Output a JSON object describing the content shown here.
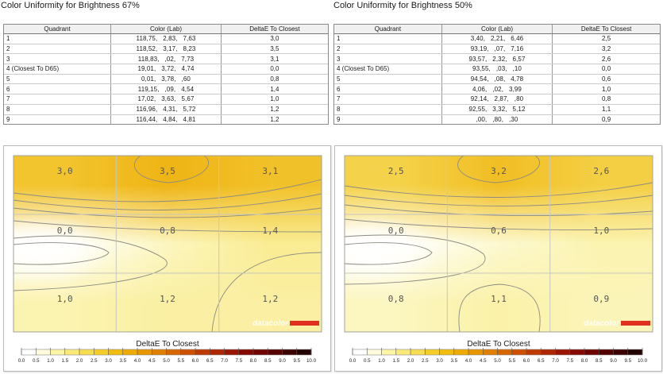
{
  "panels": [
    {
      "title": "Color Uniformity for Brightness 67%",
      "headers": [
        "Quadrant",
        "Color (Lab)",
        "DeltaE To Closest"
      ],
      "rows": [
        [
          "1",
          "118,75,   2,83,   7,63",
          "3,0"
        ],
        [
          "2",
          "118,52,   3,17,   8,23",
          "3,5"
        ],
        [
          "3",
          "118,83,   ,02,   7,73",
          "3,1"
        ],
        [
          "4 (Closest To D65)",
          "19,01,   3,72,   4,74",
          "0,0"
        ],
        [
          "5",
          "0,01,   3,78,   ,60",
          "0,8"
        ],
        [
          "6",
          "119,15,   ,09,   4,54",
          "1,4"
        ],
        [
          "7",
          "17,02,   3,63,   5,67",
          "1,0"
        ],
        [
          "8",
          "116,96,   4,31,   5,72",
          "1,2"
        ],
        [
          "9",
          "116,44,   4,84,   4,81",
          "1,2"
        ]
      ],
      "grid_labels": [
        "3,0",
        "3,5",
        "3,1",
        "0,0",
        "0,8",
        "1,4",
        "1,0",
        "1,2",
        "1,2"
      ],
      "legend_title": "DeltaE To Closest",
      "watermark": "datacolor"
    },
    {
      "title": "Color Uniformity for Brightness 50%",
      "headers": [
        "Quadrant",
        "Color (Lab)",
        "DeltaE To Closest"
      ],
      "rows": [
        [
          "1",
          "3,40,   2,21,   6,46",
          "2,5"
        ],
        [
          "2",
          "93,19,   ,07,   7,16",
          "3,2"
        ],
        [
          "3",
          "93,57,   2,32,   6,57",
          "2,6"
        ],
        [
          "4 (Closest To D65)",
          "93,55,   ,03,   ,10",
          "0,0"
        ],
        [
          "5",
          "94,54,   ,08,   4,78",
          "0,6"
        ],
        [
          "6",
          "4,06,   ,02,   3,99",
          "1,0"
        ],
        [
          "7",
          "92,14,   2,87,   ,80",
          "0,8"
        ],
        [
          "8",
          "92,55,   3,32,   5,12",
          "1,1"
        ],
        [
          "9",
          ",00,   ,80,   ,30",
          "0,9"
        ]
      ],
      "grid_labels": [
        "2,5",
        "3,2",
        "2,6",
        "0,0",
        "0,6",
        "1,0",
        "0,8",
        "1,1",
        "0,9"
      ],
      "legend_title": "DeltaE To Closest",
      "watermark": "datacolor"
    }
  ],
  "scale_ticks": [
    "0.0",
    "0.5",
    "1.0",
    "1.5",
    "2.0",
    "2.5",
    "3.0",
    "3.5",
    "4.0",
    "4.5",
    "5.0",
    "5.5",
    "6.0",
    "6.5",
    "7.0",
    "7.5",
    "8.0",
    "8.5",
    "9.0",
    "9.5",
    "10.0"
  ],
  "scale_colors": [
    "#ffffff",
    "#fffbdc",
    "#fdf5a6",
    "#fbea7a",
    "#f8dd50",
    "#f5cd28",
    "#f1bd10",
    "#eeab04",
    "#e89600",
    "#e07e00",
    "#d76600",
    "#cc5000",
    "#bf3a00",
    "#ae2600",
    "#9a1500",
    "#850800",
    "#6d0200",
    "#550000",
    "#3c0000",
    "#220000"
  ],
  "chart_data": [
    {
      "type": "heatmap",
      "title": "Color Uniformity for Brightness 67%",
      "legend_title": "DeltaE To Closest",
      "grid": [
        [
          3.0,
          3.5,
          3.1
        ],
        [
          0.0,
          0.8,
          1.4
        ],
        [
          1.0,
          1.2,
          1.2
        ]
      ],
      "scale_range": [
        0,
        10
      ]
    },
    {
      "type": "heatmap",
      "title": "Color Uniformity for Brightness 50%",
      "legend_title": "DeltaE To Closest",
      "grid": [
        [
          2.5,
          3.2,
          2.6
        ],
        [
          0.0,
          0.6,
          1.0
        ],
        [
          0.8,
          1.1,
          0.9
        ]
      ],
      "scale_range": [
        0,
        10
      ]
    }
  ]
}
